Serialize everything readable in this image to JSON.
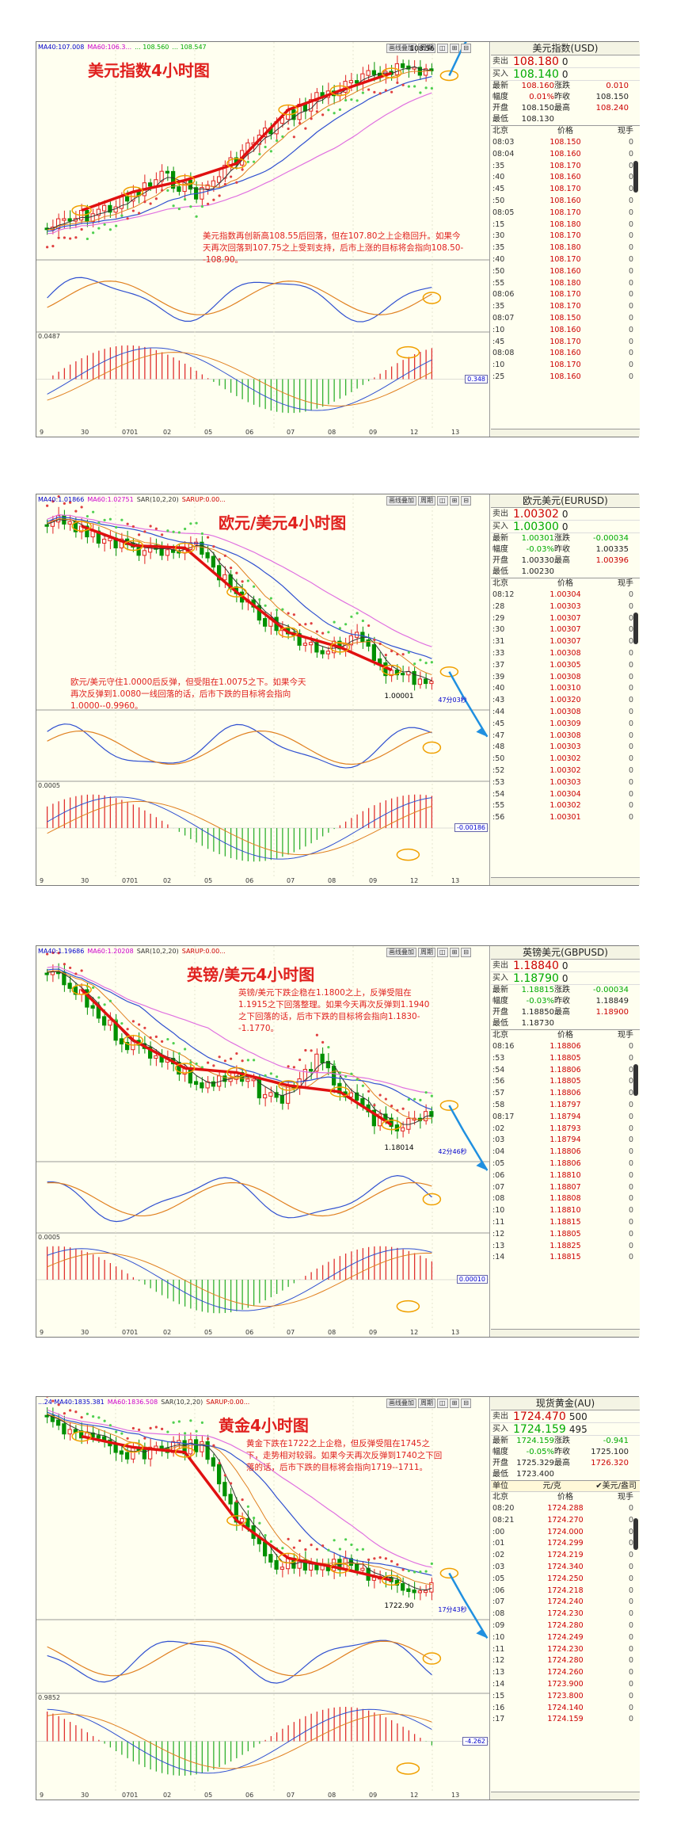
{
  "panels": [
    {
      "id": "dxy",
      "top": 52,
      "height": 500,
      "title": "美元指数4小时图",
      "title_pos": {
        "left": 110,
        "top": 20
      },
      "indicators": [
        {
          "t": "MA40:107.008",
          "c": "#00c"
        },
        {
          "t": "MA60:106.3...",
          "c": "#c0c"
        },
        {
          "t": "... 108.560",
          "c": "#0a0"
        },
        {
          "t": "... 108.547",
          "c": "#0a0"
        }
      ],
      "annotation": "美元指数再创新高108.55后回落，但在107.80之上企稳回升。如果今天再次回落到107.75之上受到支持，后市上涨的目标将会指向108.50--108.90。",
      "ann_pos": {
        "left": 255,
        "top": 238,
        "width": 330
      },
      "high_label": "108.56",
      "macd_top": "0.0487",
      "macd_box": "0.348",
      "x_ticks": [
        "9",
        "30",
        "0701",
        "02",
        "05",
        "06",
        "07",
        "08",
        "09",
        "12",
        "13"
      ],
      "buttons": [
        "画线叠加",
        "周期"
      ],
      "quote": {
        "title": "美元指数(USD)",
        "sell_label": "卖出",
        "sell": "108.180",
        "sell_vol": "0",
        "buy_label": "买入",
        "buy": "108.140",
        "buy_vol": "0",
        "stats": [
          [
            "最新",
            "108.160",
            "涨跌",
            "0.010"
          ],
          [
            "幅度",
            "0.01%",
            "昨收",
            "108.150"
          ],
          [
            "开盘",
            "108.150",
            "最高",
            "108.240"
          ],
          [
            "最低",
            "108.130",
            "",
            ""
          ]
        ],
        "stat_colors": [
          [
            "r",
            "r"
          ],
          [
            "r",
            ""
          ],
          [
            "",
            "r"
          ],
          [
            "",
            ""
          ]
        ],
        "head": [
          "北京",
          "价格",
          "现手"
        ],
        "ticks": [
          [
            "08:03",
            "108.150",
            "0"
          ],
          [
            "08:04",
            "108.160",
            "0"
          ],
          [
            ":35",
            "108.170",
            "0"
          ],
          [
            ":40",
            "108.160",
            "0"
          ],
          [
            ":45",
            "108.170",
            "0"
          ],
          [
            ":50",
            "108.160",
            "0"
          ],
          [
            "08:05",
            "108.170",
            "0"
          ],
          [
            ":15",
            "108.180",
            "0"
          ],
          [
            ":30",
            "108.170",
            "0"
          ],
          [
            ":35",
            "108.180",
            "0"
          ],
          [
            ":40",
            "108.170",
            "0"
          ],
          [
            ":50",
            "108.160",
            "0"
          ],
          [
            ":55",
            "108.180",
            "0"
          ],
          [
            "08:06",
            "108.170",
            "0"
          ],
          [
            ":35",
            "108.170",
            "0"
          ],
          [
            "08:07",
            "108.150",
            "0"
          ],
          [
            ":10",
            "108.160",
            "0"
          ],
          [
            ":45",
            "108.170",
            "0"
          ],
          [
            "08:08",
            "108.160",
            "0"
          ],
          [
            ":10",
            "108.170",
            "0"
          ],
          [
            ":25",
            "108.160",
            "0"
          ]
        ],
        "green_rows": []
      },
      "trend": "up"
    },
    {
      "id": "eurusd",
      "top": 623,
      "height": 495,
      "title": "欧元/美元4小时图",
      "title_pos": {
        "left": 275,
        "top": 20
      },
      "indicators": [
        {
          "t": "MA40:1.01866",
          "c": "#00c"
        },
        {
          "t": "MA60:1.02751",
          "c": "#c0c"
        },
        {
          "t": "SAR(10,2,20)",
          "c": "#333"
        },
        {
          "t": "SARUP:0.00...",
          "c": "#c00"
        }
      ],
      "annotation": "欧元/美元守住1.0000后反弹，但受阻在1.0075之下。如果今天再次反弹到1.0080一线回落的话，后市下跌的目标将会指向1.0000--0.9960。",
      "ann_pos": {
        "left": 88,
        "top": 230,
        "width": 300
      },
      "low_label": "1.00001",
      "timer": "47分03秒",
      "macd_top": "0.0005",
      "macd_box": "-0.00186",
      "x_ticks": [
        "9",
        "30",
        "0701",
        "02",
        "05",
        "06",
        "07",
        "08",
        "09",
        "12",
        "13"
      ],
      "buttons": [
        "画线叠加",
        "周期"
      ],
      "quote": {
        "title": "欧元美元(EURUSD)",
        "sell_label": "卖出",
        "sell": "1.00302",
        "sell_vol": "0",
        "buy_label": "买入",
        "buy": "1.00300",
        "buy_vol": "0",
        "stats": [
          [
            "最新",
            "1.00301",
            "涨跌",
            "-0.00034"
          ],
          [
            "幅度",
            "-0.03%",
            "昨收",
            "1.00335"
          ],
          [
            "开盘",
            "1.00330",
            "最高",
            "1.00396"
          ],
          [
            "最低",
            "1.00230",
            "",
            ""
          ]
        ],
        "stat_colors": [
          [
            "g",
            "g"
          ],
          [
            "g",
            ""
          ],
          [
            "",
            "r"
          ],
          [
            "",
            ""
          ]
        ],
        "head": [
          "北京",
          "价格",
          "现手"
        ],
        "ticks": [
          [
            "08:12",
            "1.00304",
            "0"
          ],
          [
            ":28",
            "1.00303",
            "0"
          ],
          [
            ":29",
            "1.00307",
            "0"
          ],
          [
            ":30",
            "1.00307",
            "0"
          ],
          [
            ":31",
            "1.00307",
            "0"
          ],
          [
            ":33",
            "1.00308",
            "0"
          ],
          [
            ":37",
            "1.00305",
            "0"
          ],
          [
            ":39",
            "1.00308",
            "0"
          ],
          [
            ":40",
            "1.00310",
            "0"
          ],
          [
            ":43",
            "1.00320",
            "0"
          ],
          [
            ":44",
            "1.00308",
            "0"
          ],
          [
            ":45",
            "1.00309",
            "0"
          ],
          [
            ":47",
            "1.00308",
            "0"
          ],
          [
            ":48",
            "1.00303",
            "0"
          ],
          [
            ":50",
            "1.00302",
            "0"
          ],
          [
            ":52",
            "1.00302",
            "0"
          ],
          [
            ":53",
            "1.00303",
            "0"
          ],
          [
            ":54",
            "1.00304",
            "0"
          ],
          [
            ":55",
            "1.00302",
            "0"
          ],
          [
            ":56",
            "1.00301",
            "0"
          ]
        ],
        "green_rows": []
      },
      "trend": "down"
    },
    {
      "id": "gbpusd",
      "top": 1193,
      "height": 495,
      "title": "英镑/美元4小时图",
      "title_pos": {
        "left": 235,
        "top": 20
      },
      "indicators": [
        {
          "t": "MA40:1.19686",
          "c": "#00c"
        },
        {
          "t": "MA60:1.20208",
          "c": "#c0c"
        },
        {
          "t": "SAR(10,2,20)",
          "c": "#333"
        },
        {
          "t": "SARUP:0.00...",
          "c": "#c00"
        }
      ],
      "annotation": "英镑/美元下跌企稳在1.1800之上，反弹受阻在1.1915之下回落整理。如果今天再次反弹到1.1940之下回落的话，后市下跌的目标将会指向1.1830--1.1770。",
      "ann_pos": {
        "left": 300,
        "top": 52,
        "width": 250
      },
      "low_label": "1.18014",
      "timer": "42分46秒",
      "macd_top": "0.0005",
      "macd_box": "0.00010",
      "x_ticks": [
        "9",
        "30",
        "0701",
        "02",
        "05",
        "06",
        "07",
        "08",
        "09",
        "12",
        "13"
      ],
      "buttons": [
        "画线叠加",
        "周期"
      ],
      "quote": {
        "title": "英镑美元(GBPUSD)",
        "sell_label": "卖出",
        "sell": "1.18840",
        "sell_vol": "0",
        "buy_label": "买入",
        "buy": "1.18790",
        "buy_vol": "0",
        "stats": [
          [
            "最新",
            "1.18815",
            "涨跌",
            "-0.00034"
          ],
          [
            "幅度",
            "-0.03%",
            "昨收",
            "1.18849"
          ],
          [
            "开盘",
            "1.18850",
            "最高",
            "1.18900"
          ],
          [
            "最低",
            "1.18730",
            "",
            ""
          ]
        ],
        "stat_colors": [
          [
            "g",
            "g"
          ],
          [
            "g",
            ""
          ],
          [
            "",
            "r"
          ],
          [
            "",
            ""
          ]
        ],
        "head": [
          "北京",
          "价格",
          "现手"
        ],
        "ticks": [
          [
            "08:16",
            "1.18806",
            "0"
          ],
          [
            ":53",
            "1.18805",
            "0"
          ],
          [
            ":54",
            "1.18806",
            "0"
          ],
          [
            ":56",
            "1.18805",
            "0"
          ],
          [
            ":57",
            "1.18806",
            "0"
          ],
          [
            ":58",
            "1.18797",
            "0"
          ],
          [
            "08:17",
            "1.18794",
            "0"
          ],
          [
            ":02",
            "1.18793",
            "0"
          ],
          [
            ":03",
            "1.18794",
            "0"
          ],
          [
            ":04",
            "1.18806",
            "0"
          ],
          [
            ":05",
            "1.18806",
            "0"
          ],
          [
            ":06",
            "1.18810",
            "0"
          ],
          [
            ":07",
            "1.18807",
            "0"
          ],
          [
            ":08",
            "1.18808",
            "0"
          ],
          [
            ":10",
            "1.18810",
            "0"
          ],
          [
            ":11",
            "1.18815",
            "0"
          ],
          [
            ":12",
            "1.18805",
            "0"
          ],
          [
            ":13",
            "1.18825",
            "0"
          ],
          [
            ":14",
            "1.18815",
            "0"
          ]
        ],
        "green_rows": []
      },
      "trend": "down"
    },
    {
      "id": "gold",
      "top": 1762,
      "height": 510,
      "title": "黄金4小时图",
      "title_pos": {
        "left": 275,
        "top": 20
      },
      "indicators": [
        {
          "t": "...24 MA40:1835.381",
          "c": "#00c"
        },
        {
          "t": "MA60:1836.508",
          "c": "#c0c"
        },
        {
          "t": "SAR(10,2,20)",
          "c": "#333"
        },
        {
          "t": "SARUP:0.00...",
          "c": "#c00"
        }
      ],
      "annotation": "黄金下跌在1722之上企稳，但反弹受阻在1745之下，走势相对较弱。如果今天再次反弹到1740之下回落的话，后市下跌的目标将会指向1719--1711。",
      "ann_pos": {
        "left": 310,
        "top": 52,
        "width": 250
      },
      "low_label": "1722.90",
      "timer": "17分43秒",
      "macd_top": "0.9852",
      "macd_box": "-4.262",
      "x_ticks": [
        "9",
        "30",
        "0701",
        "02",
        "05",
        "06",
        "07",
        "08",
        "09",
        "12",
        "13"
      ],
      "buttons": [
        "画线叠加",
        "周期"
      ],
      "quote": {
        "title": "现货黄金(AU)",
        "sell_label": "卖出",
        "sell": "1724.470",
        "sell_vol": "500",
        "buy_label": "买入",
        "buy": "1724.159",
        "buy_vol": "495",
        "stats": [
          [
            "最新",
            "1724.159",
            "涨跌",
            "-0.941"
          ],
          [
            "幅度",
            "-0.05%",
            "昨收",
            "1725.100"
          ],
          [
            "开盘",
            "1725.329",
            "最高",
            "1726.320"
          ],
          [
            "最低",
            "1723.400",
            "",
            ""
          ]
        ],
        "stat_colors": [
          [
            "g",
            "g"
          ],
          [
            "g",
            ""
          ],
          [
            "",
            "r"
          ],
          [
            "",
            ""
          ]
        ],
        "unit_left": "单位",
        "unit_mid": "元/克",
        "unit_right": "✔美元/盎司",
        "head": [
          "北京",
          "价格",
          "现手"
        ],
        "ticks": [
          [
            "08:20",
            "1724.288",
            "0"
          ],
          [
            "08:21",
            "1724.270",
            "0"
          ],
          [
            ":00",
            "1724.000",
            "0"
          ],
          [
            ":01",
            "1724.299",
            "0"
          ],
          [
            ":02",
            "1724.219",
            "0"
          ],
          [
            ":03",
            "1724.340",
            "0"
          ],
          [
            ":05",
            "1724.250",
            "0"
          ],
          [
            ":06",
            "1724.218",
            "0"
          ],
          [
            ":07",
            "1724.240",
            "0"
          ],
          [
            ":08",
            "1724.230",
            "0"
          ],
          [
            ":09",
            "1724.280",
            "0"
          ],
          [
            ":10",
            "1724.249",
            "0"
          ],
          [
            ":11",
            "1724.230",
            "0"
          ],
          [
            ":12",
            "1724.280",
            "0"
          ],
          [
            ":13",
            "1724.260",
            "0"
          ],
          [
            ":14",
            "1723.900",
            "0"
          ],
          [
            ":15",
            "1723.800",
            "0"
          ],
          [
            ":16",
            "1724.140",
            "0"
          ],
          [
            ":17",
            "1724.159",
            "0"
          ]
        ],
        "green_rows": []
      },
      "trend": "down"
    }
  ],
  "chart_data": [
    {
      "type": "candlestick",
      "title": "美元指数4小时图",
      "categories": [
        "9",
        "30",
        "0701",
        "02",
        "05",
        "06",
        "07",
        "08",
        "09",
        "12",
        "13"
      ],
      "series": [
        {
          "values": [
            104.6,
            104.9,
            105.2,
            105.8,
            105.4,
            106.3,
            107.0,
            107.6,
            107.9,
            108.3,
            108.2
          ]
        }
      ],
      "annotations": [
        "108.56"
      ]
    },
    {
      "type": "candlestick",
      "title": "欧元/美元4小时图",
      "categories": [
        "9",
        "30",
        "0701",
        "02",
        "05",
        "06",
        "07",
        "08",
        "09",
        "12",
        "13"
      ],
      "series": [
        {
          "values": [
            1.052,
            1.048,
            1.044,
            1.041,
            1.043,
            1.027,
            1.018,
            1.012,
            1.016,
            1.004,
            1.003
          ]
        }
      ],
      "annotations": [
        "1.00001",
        "47分03秒"
      ]
    },
    {
      "type": "candlestick",
      "title": "英镑/美元4小时图",
      "categories": [
        "9",
        "30",
        "0701",
        "02",
        "05",
        "06",
        "07",
        "08",
        "09",
        "12",
        "13"
      ],
      "series": [
        {
          "values": [
            1.227,
            1.219,
            1.208,
            1.204,
            1.196,
            1.198,
            1.192,
            1.203,
            1.191,
            1.184,
            1.188
          ]
        }
      ],
      "annotations": [
        "1.18014",
        "42分46秒"
      ]
    },
    {
      "type": "candlestick",
      "title": "黄金4小时图",
      "categories": [
        "9",
        "30",
        "0701",
        "02",
        "05",
        "06",
        "07",
        "08",
        "09",
        "12",
        "13"
      ],
      "series": [
        {
          "values": [
            1825,
            1817,
            1803,
            1810,
            1810,
            1765,
            1738,
            1740,
            1737,
            1725,
            1724
          ]
        }
      ],
      "annotations": [
        "1722.90",
        "17分43秒"
      ]
    }
  ]
}
